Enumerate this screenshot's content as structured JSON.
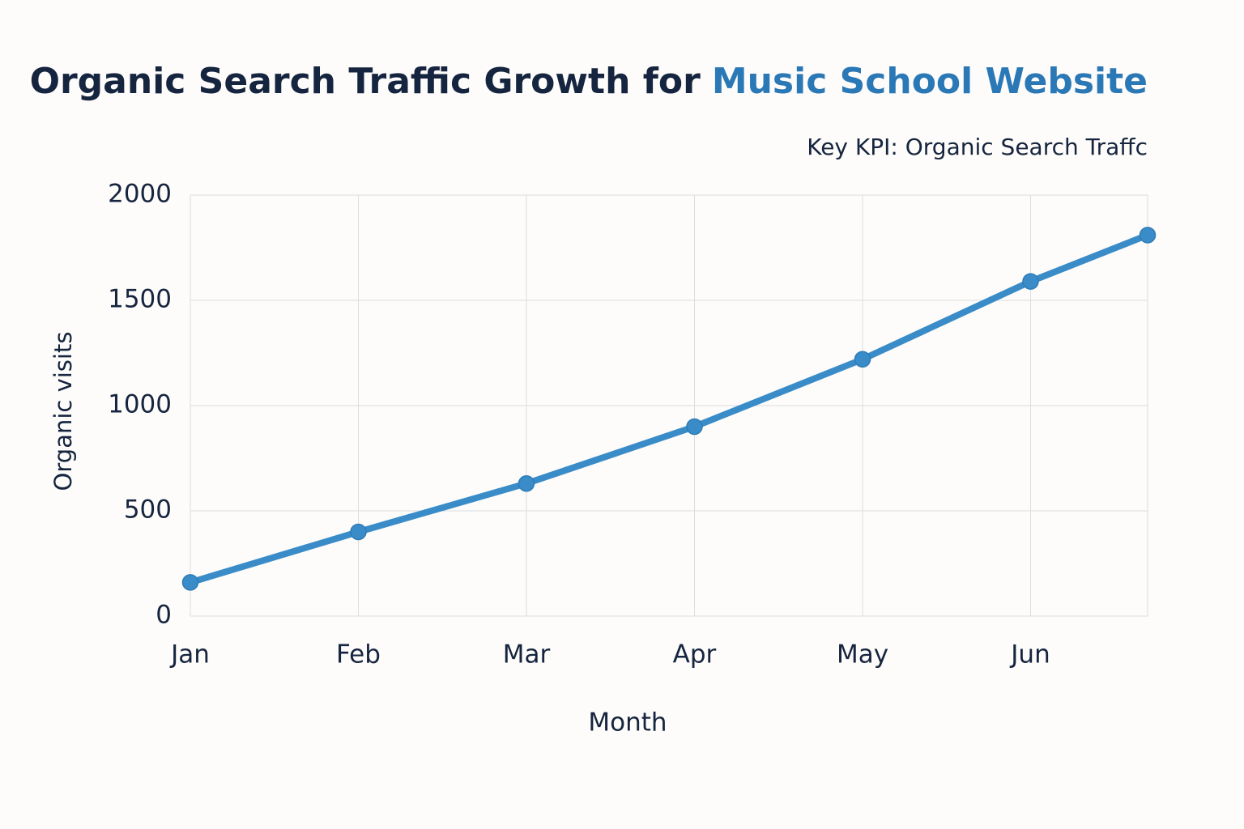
{
  "chart_data": {
    "type": "line",
    "title": "Organic Search Traffic Growth for",
    "title_highlight": "Music School Website",
    "title_highlight_color": "#2a78b6",
    "subtitle": "Key KPI: Organic Search Traffc",
    "x_label": "Month",
    "y_label": "Organic visits",
    "categories": [
      "Jan",
      "Feb",
      "Mar",
      "Apr",
      "May",
      "Jun",
      null
    ],
    "series": [
      {
        "name": "Organic visits",
        "color": "#3a8cc8",
        "values": [
          160,
          400,
          630,
          900,
          1220,
          1590,
          1810
        ]
      }
    ],
    "ylim": [
      0,
      2000
    ],
    "yticks": [
      0,
      500,
      1000,
      1500,
      2000
    ],
    "grid": true
  }
}
